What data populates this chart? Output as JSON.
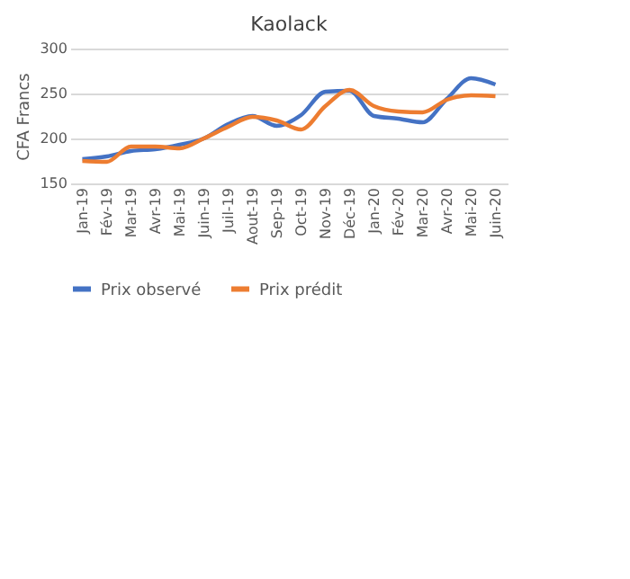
{
  "chart_data": {
    "type": "line",
    "title": "Kaolack",
    "ylabel": "CFA Francs",
    "categories": [
      "Jan-19",
      "Fév-19",
      "Mar-19",
      "Avr-19",
      "Mai-19",
      "Juin-19",
      "Juil-19",
      "Aout-19",
      "Sep-19",
      "Oct-19",
      "Nov-19",
      "Déc-19",
      "Jan-20",
      "Fév-20",
      "Mar-20",
      "Avr-20",
      "Mai-20",
      "Juin-20"
    ],
    "series": [
      {
        "name": "Prix observé",
        "color": "#4472c4",
        "values": [
          177,
          180,
          186,
          188,
          193,
          200,
          216,
          225,
          214,
          226,
          252,
          253,
          225,
          222,
          218,
          244,
          267,
          260
        ]
      },
      {
        "name": "Prix prédit",
        "color": "#ed7d31",
        "values": [
          175,
          174,
          191,
          191,
          189,
          200,
          213,
          224,
          220,
          210,
          236,
          254,
          236,
          230,
          229,
          243,
          248,
          247
        ]
      }
    ],
    "ylim": [
      150,
      300
    ],
    "yticks": [
      150,
      200,
      250,
      300
    ],
    "grid": "y",
    "legend": "bottom",
    "marker": "none",
    "line_style": "solid"
  }
}
